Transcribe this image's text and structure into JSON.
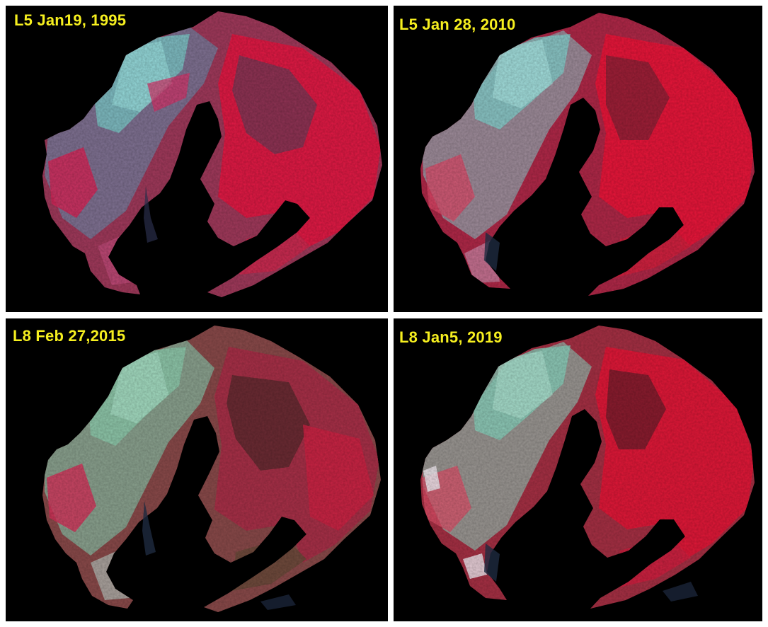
{
  "panels": [
    {
      "label": "L5 Jan19, 1995",
      "image": "false-color-satellite-map",
      "colors": {
        "vegetation": "#e21a45",
        "urban": "#7fd6d2",
        "mid": "#a23a5c",
        "dark": "#5a2a3a",
        "background": "#000000",
        "label": "#f6ef1f"
      }
    },
    {
      "label": "L5 Jan 28, 2010",
      "image": "false-color-satellite-map",
      "colors": {
        "vegetation": "#e8163a",
        "urban": "#86d3cf",
        "mid": "#b02848",
        "dark": "#5c2230",
        "background": "#000000",
        "label": "#f6ef1f"
      }
    },
    {
      "label": "L8 Feb 27,2015",
      "image": "false-color-satellite-map",
      "colors": {
        "vegetation": "#cf2244",
        "urban": "#8ed0b0",
        "mid": "#8a4a4a",
        "dark": "#4a2a28",
        "background": "#000000",
        "label": "#f6ef1f"
      }
    },
    {
      "label": "L8 Jan5, 2019",
      "image": "false-color-satellite-map",
      "colors": {
        "vegetation": "#e01838",
        "urban": "#8ad4bf",
        "mid": "#a63044",
        "dark": "#4e2028",
        "background": "#000000",
        "label": "#f6ef1f"
      }
    }
  ]
}
